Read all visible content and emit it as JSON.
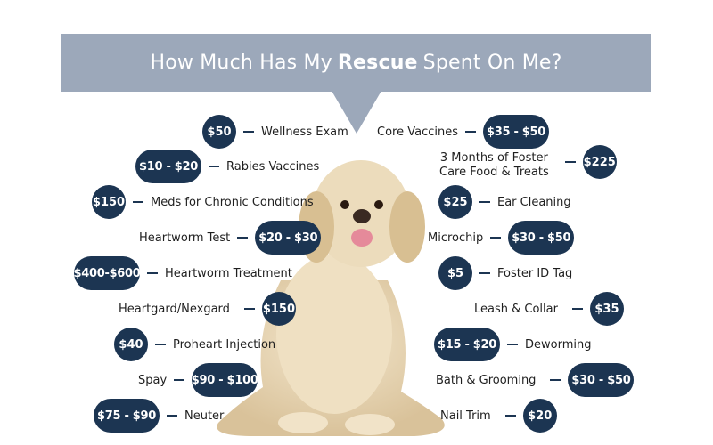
{
  "title": {
    "prefix": "How Much Has My",
    "bold": "Rescue",
    "suffix": "Spent On Me?"
  },
  "colors": {
    "banner": "#9ca8ba",
    "badge": "#1c3552"
  },
  "image": "golden-retriever-photo",
  "left_items": [
    {
      "price": "$50",
      "label": "Wellness Exam"
    },
    {
      "price": "$10 - $20",
      "label": "Rabies Vaccines"
    },
    {
      "price": "$150",
      "label": "Meds for Chronic Conditions"
    },
    {
      "price": "$20 - $30",
      "label": "Heartworm Test"
    },
    {
      "price": "$400-$600",
      "label": "Heartworm Treatment"
    },
    {
      "price": "$150",
      "label": "Heartgard/Nexgard"
    },
    {
      "price": "$40",
      "label": "Proheart Injection"
    },
    {
      "price": "$90 - $100",
      "label": "Spay"
    },
    {
      "price": "$75 - $90",
      "label": "Neuter"
    }
  ],
  "right_items": [
    {
      "price": "$35 - $50",
      "label": "Core Vaccines"
    },
    {
      "price": "$225",
      "label_line1": "3 Months of Foster",
      "label_line2": "Care Food & Treats"
    },
    {
      "price": "$25",
      "label": "Ear Cleaning"
    },
    {
      "price": "$30 - $50",
      "label": "Microchip"
    },
    {
      "price": "$5",
      "label": "Foster ID Tag"
    },
    {
      "price": "$35",
      "label": "Leash & Collar"
    },
    {
      "price": "$15 - $20",
      "label": "Deworming"
    },
    {
      "price": "$30 - $50",
      "label": "Bath & Grooming"
    },
    {
      "price": "$20",
      "label": "Nail Trim"
    }
  ]
}
